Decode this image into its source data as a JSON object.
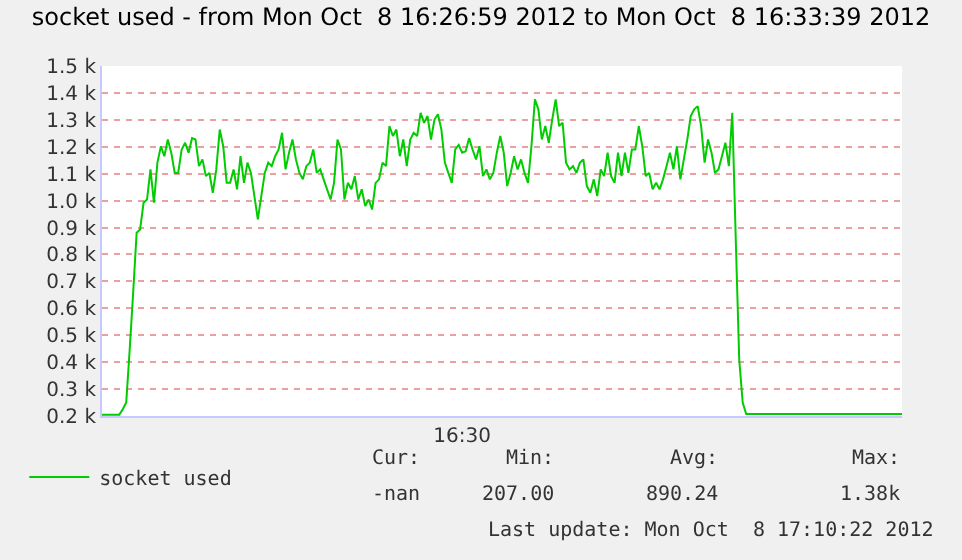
{
  "chart_data": {
    "type": "line",
    "title": "socket used - from Mon Oct  8 16:26:59 2012 to Mon Oct  8 16:33:39 2012",
    "categories": [
      null,
      null,
      null,
      null,
      null,
      null,
      null,
      null,
      null,
      null,
      null,
      null,
      null,
      null,
      null,
      null,
      null,
      null,
      null,
      null,
      null,
      null,
      null,
      null,
      null,
      null,
      null,
      null,
      null,
      null,
      null,
      null,
      null,
      null,
      null,
      null,
      null,
      null,
      null,
      null,
      null,
      null,
      null,
      null,
      null,
      null,
      null,
      null,
      null,
      null,
      null,
      null,
      null,
      null,
      null,
      null,
      null,
      null,
      null,
      null,
      null,
      null,
      null,
      null,
      null,
      null,
      null,
      null,
      null,
      null,
      null,
      null,
      null,
      null,
      null,
      null,
      null,
      null,
      null,
      null,
      null,
      null,
      null,
      null,
      null,
      null,
      null,
      null,
      null,
      null,
      null,
      null,
      null,
      null,
      null,
      null,
      null,
      null,
      null,
      null,
      null,
      null,
      null,
      null,
      "16:30",
      null,
      null,
      null,
      null,
      null,
      null,
      null,
      null,
      null,
      null,
      null,
      null,
      null,
      null,
      null,
      null,
      null,
      null,
      null,
      null,
      null,
      null,
      null,
      null,
      null,
      null,
      null,
      null,
      null,
      null,
      null,
      null,
      null,
      null,
      null,
      null,
      null,
      null,
      null,
      null,
      null,
      null,
      null,
      null,
      null,
      null,
      null,
      null,
      null,
      null,
      null,
      null,
      null,
      null,
      null,
      null,
      null,
      null,
      null,
      null,
      null,
      null,
      null,
      null,
      null,
      null,
      null,
      null,
      null,
      null,
      null,
      null,
      null,
      null,
      null,
      null,
      null,
      null,
      null,
      null,
      null,
      null,
      null,
      null,
      null,
      null,
      null,
      null,
      null,
      null,
      null,
      null,
      null,
      null,
      null,
      null,
      null,
      null,
      null,
      null,
      null,
      null,
      null,
      null,
      null,
      null,
      null,
      null,
      null,
      null,
      null,
      null,
      null,
      null,
      null,
      null,
      null,
      null,
      null,
      null,
      null,
      null,
      null,
      null,
      null,
      null,
      null
    ],
    "series": [
      {
        "name": "socket used",
        "color": "#00cc00",
        "values": [
          0.205,
          0.205,
          0.205,
          0.205,
          0.205,
          0.205,
          0.225,
          0.25,
          0.447,
          0.658,
          0.881,
          0.893,
          0.992,
          1.004,
          1.116,
          0.992,
          1.141,
          1.202,
          1.165,
          1.227,
          1.178,
          1.103,
          1.103,
          1.19,
          1.215,
          1.178,
          1.232,
          1.227,
          1.128,
          1.153,
          1.091,
          1.103,
          1.029,
          1.116,
          1.264,
          1.202,
          1.066,
          1.066,
          1.116,
          1.042,
          1.165,
          1.066,
          1.141,
          1.103,
          1.017,
          0.93,
          1.017,
          1.103,
          1.141,
          1.128,
          1.165,
          1.19,
          1.252,
          1.116,
          1.178,
          1.227,
          1.153,
          1.103,
          1.079,
          1.128,
          1.141,
          1.19,
          1.103,
          1.116,
          1.079,
          1.042,
          1.004,
          1.066,
          1.227,
          1.19,
          1.004,
          1.066,
          1.042,
          1.091,
          1.004,
          1.042,
          0.98,
          1.004,
          0.967,
          1.066,
          1.079,
          1.141,
          1.128,
          1.277,
          1.24,
          1.264,
          1.165,
          1.227,
          1.128,
          1.227,
          1.252,
          1.24,
          1.326,
          1.289,
          1.314,
          1.227,
          1.301,
          1.321,
          1.264,
          1.141,
          1.103,
          1.066,
          1.19,
          1.207,
          1.178,
          1.183,
          1.232,
          1.19,
          1.153,
          1.202,
          1.091,
          1.116,
          1.079,
          1.103,
          1.178,
          1.24,
          1.178,
          1.054,
          1.103,
          1.165,
          1.116,
          1.153,
          1.103,
          1.066,
          1.202,
          1.376,
          1.339,
          1.227,
          1.277,
          1.215,
          1.301,
          1.376,
          1.277,
          1.289,
          1.141,
          1.116,
          1.128,
          1.103,
          1.141,
          1.153,
          1.054,
          1.029,
          1.079,
          1.017,
          1.116,
          1.091,
          1.178,
          1.091,
          1.066,
          1.178,
          1.091,
          1.178,
          1.103,
          1.19,
          1.19,
          1.277,
          1.202,
          1.091,
          1.103,
          1.042,
          1.066,
          1.042,
          1.079,
          1.128,
          1.178,
          1.116,
          1.202,
          1.079,
          1.153,
          1.227,
          1.314,
          1.339,
          1.351,
          1.277,
          1.141,
          1.227,
          1.178,
          1.103,
          1.116,
          1.165,
          1.215,
          1.128,
          1.326,
          0.856,
          0.41,
          0.25,
          0.207,
          0.207,
          0.207,
          0.207,
          0.207,
          0.207,
          0.207,
          0.207,
          0.207,
          0.207,
          0.207,
          0.207,
          0.207,
          0.207,
          0.207,
          0.207,
          0.207,
          0.207,
          0.207,
          0.207,
          0.207,
          0.207,
          0.207,
          0.207,
          0.207,
          0.207,
          0.207,
          0.207,
          0.207,
          0.207,
          0.207,
          0.207,
          0.207,
          0.207,
          0.207,
          0.207,
          0.207,
          0.207,
          0.207,
          0.207,
          0.207,
          0.207,
          0.207,
          0.207,
          0.207,
          0.207
        ]
      }
    ],
    "ylim": [
      0.2,
      1.5
    ],
    "yticks": [
      {
        "value": 0.2,
        "label": "0.2 k"
      },
      {
        "value": 0.3,
        "label": "0.3 k"
      },
      {
        "value": 0.4,
        "label": "0.4 k"
      },
      {
        "value": 0.5,
        "label": "0.5 k"
      },
      {
        "value": 0.6,
        "label": "0.6 k"
      },
      {
        "value": 0.7,
        "label": "0.7 k"
      },
      {
        "value": 0.8,
        "label": "0.8 k"
      },
      {
        "value": 0.9,
        "label": "0.9 k"
      },
      {
        "value": 1.0,
        "label": "1.0 k"
      },
      {
        "value": 1.1,
        "label": "1.1 k"
      },
      {
        "value": 1.2,
        "label": "1.2 k"
      },
      {
        "value": 1.3,
        "label": "1.3 k"
      },
      {
        "value": 1.4,
        "label": "1.4 k"
      },
      {
        "value": 1.5,
        "label": "1.5 k"
      }
    ],
    "grid": "y",
    "legend": "bottom left",
    "marker": "none",
    "line_style": "solid",
    "annotations": [
      "Cur:",
      "Min:",
      "Avg:",
      "Max:",
      "-nan",
      "207.00",
      "890.24",
      "1.38k",
      "Last update: Mon Oct  8 17:10:22 2012"
    ]
  }
}
